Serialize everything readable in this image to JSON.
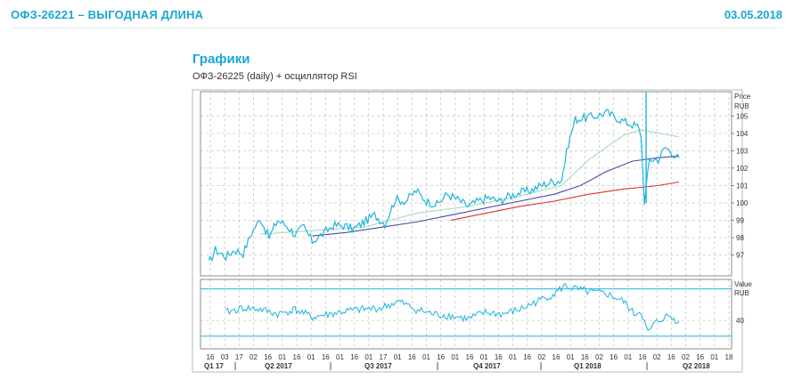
{
  "header": {
    "title": "ОФЗ-26221 – ВЫГОДНАЯ ДЛИНА",
    "date": "03.05.2018"
  },
  "section": {
    "title": "Графики",
    "subtitle": "ОФЗ-26225 (daily) + осциллятор RSI"
  },
  "colors": {
    "accent": "#1aa5d6",
    "price": "#1eb4dc",
    "ma_short": "#a8dcc0",
    "ma_mid": "#4a4aa8",
    "ma_long": "#e03030",
    "rsi": "#1eb4dc",
    "grid": "#c8c8c8"
  },
  "chart_data": [
    {
      "type": "line",
      "panel": "price",
      "axis_title": [
        "Price",
        "RUB"
      ],
      "ylim": [
        95.8,
        106.4
      ],
      "yticks": [
        "97",
        "98",
        "99",
        "100",
        "101",
        "102",
        "103",
        "104",
        "105"
      ],
      "grid": true,
      "price_keypoints": [
        [
          0,
          96.5
        ],
        [
          4,
          97.3
        ],
        [
          10,
          96.9
        ],
        [
          15,
          97.3
        ],
        [
          20,
          97.1
        ],
        [
          25,
          98.3
        ],
        [
          30,
          99.1
        ],
        [
          35,
          98.0
        ],
        [
          40,
          99.0
        ],
        [
          45,
          98.7
        ],
        [
          50,
          98.2
        ],
        [
          55,
          98.6
        ],
        [
          60,
          97.8
        ],
        [
          66,
          98.2
        ],
        [
          72,
          98.7
        ],
        [
          78,
          98.7
        ],
        [
          84,
          98.5
        ],
        [
          90,
          98.9
        ],
        [
          96,
          99.3
        ],
        [
          102,
          98.8
        ],
        [
          108,
          100.2
        ],
        [
          114,
          100.1
        ],
        [
          120,
          100.7
        ],
        [
          126,
          100.1
        ],
        [
          132,
          99.9
        ],
        [
          138,
          100.5
        ],
        [
          144,
          100.2
        ],
        [
          150,
          99.8
        ],
        [
          156,
          100.1
        ],
        [
          162,
          100.3
        ],
        [
          168,
          100.1
        ],
        [
          174,
          100.4
        ],
        [
          180,
          100.6
        ],
        [
          186,
          100.7
        ],
        [
          192,
          101.0
        ],
        [
          198,
          101.2
        ],
        [
          204,
          101.3
        ],
        [
          208,
          103.4
        ],
        [
          212,
          104.8
        ],
        [
          218,
          104.9
        ],
        [
          224,
          105.0
        ],
        [
          230,
          105.2
        ],
        [
          236,
          104.9
        ],
        [
          242,
          104.6
        ],
        [
          248,
          104.4
        ],
        [
          250,
          103.9
        ],
        [
          252,
          100.1
        ],
        [
          255,
          102.5
        ],
        [
          260,
          102.5
        ],
        [
          264,
          103.2
        ],
        [
          268,
          102.9
        ],
        [
          272,
          102.5
        ]
      ],
      "price_noise": 0.25,
      "series": [
        {
          "key": "ma_short",
          "points": [
            [
              30,
              98.2
            ],
            [
              60,
              98.4
            ],
            [
              90,
              98.6
            ],
            [
              120,
              99.4
            ],
            [
              150,
              99.8
            ],
            [
              180,
              100.4
            ],
            [
              204,
              101.0
            ],
            [
              220,
              102.5
            ],
            [
              240,
              103.9
            ],
            [
              250,
              104.2
            ],
            [
              272,
              103.8
            ]
          ]
        },
        {
          "key": "ma_mid",
          "points": [
            [
              60,
              98.1
            ],
            [
              80,
              98.3
            ],
            [
              100,
              98.6
            ],
            [
              120,
              98.9
            ],
            [
              140,
              99.3
            ],
            [
              160,
              99.7
            ],
            [
              180,
              100.1
            ],
            [
              200,
              100.5
            ],
            [
              215,
              101.0
            ],
            [
              230,
              101.8
            ],
            [
              245,
              102.4
            ],
            [
              260,
              102.6
            ],
            [
              272,
              102.7
            ]
          ]
        },
        {
          "key": "ma_long",
          "points": [
            [
              140,
              99.0
            ],
            [
              160,
              99.4
            ],
            [
              180,
              99.8
            ],
            [
              200,
              100.1
            ],
            [
              220,
              100.5
            ],
            [
              240,
              100.8
            ],
            [
              260,
              101.0
            ],
            [
              272,
              101.2
            ]
          ]
        }
      ],
      "spike": {
        "x": 253,
        "low": 100.0,
        "high": 106.4
      }
    },
    {
      "type": "line",
      "panel": "rsi",
      "axis_title": [
        "Value",
        "RUB"
      ],
      "ylim": [
        22,
        66
      ],
      "yticks": [
        "40"
      ],
      "grid": true,
      "levels": [
        60,
        30
      ],
      "rsi_keypoints": [
        [
          10,
          45
        ],
        [
          20,
          48
        ],
        [
          30,
          47
        ],
        [
          40,
          44
        ],
        [
          50,
          47
        ],
        [
          60,
          42
        ],
        [
          70,
          44
        ],
        [
          80,
          46
        ],
        [
          90,
          47
        ],
        [
          100,
          48
        ],
        [
          110,
          52
        ],
        [
          120,
          47
        ],
        [
          130,
          44
        ],
        [
          140,
          43
        ],
        [
          150,
          41
        ],
        [
          160,
          45
        ],
        [
          170,
          44
        ],
        [
          180,
          47
        ],
        [
          190,
          52
        ],
        [
          200,
          57
        ],
        [
          206,
          62
        ],
        [
          212,
          60
        ],
        [
          220,
          58
        ],
        [
          230,
          57
        ],
        [
          240,
          52
        ],
        [
          246,
          44
        ],
        [
          250,
          46
        ],
        [
          254,
          32
        ],
        [
          258,
          38
        ],
        [
          262,
          41
        ],
        [
          266,
          43
        ],
        [
          270,
          40
        ],
        [
          272,
          41
        ]
      ],
      "rsi_noise": 2.5
    },
    {
      "type": "axis",
      "panel": "x",
      "x_ticks": [
        "16",
        "03",
        "17",
        "02",
        "16",
        "01",
        "16",
        "01",
        "16",
        "01",
        "16",
        "01",
        "17",
        "01",
        "16",
        "01",
        "16",
        "01",
        "16",
        "01",
        "16",
        "01",
        "16",
        "02",
        "16",
        "01",
        "16",
        "02",
        "16",
        "01",
        "16",
        "02",
        "16",
        "02",
        "16",
        "01",
        "18"
      ],
      "quarters": [
        "Q1 17",
        "Q2 2017",
        "Q3 2017",
        "Q4 2017",
        "Q1 2018",
        "Q2 2018"
      ]
    }
  ]
}
